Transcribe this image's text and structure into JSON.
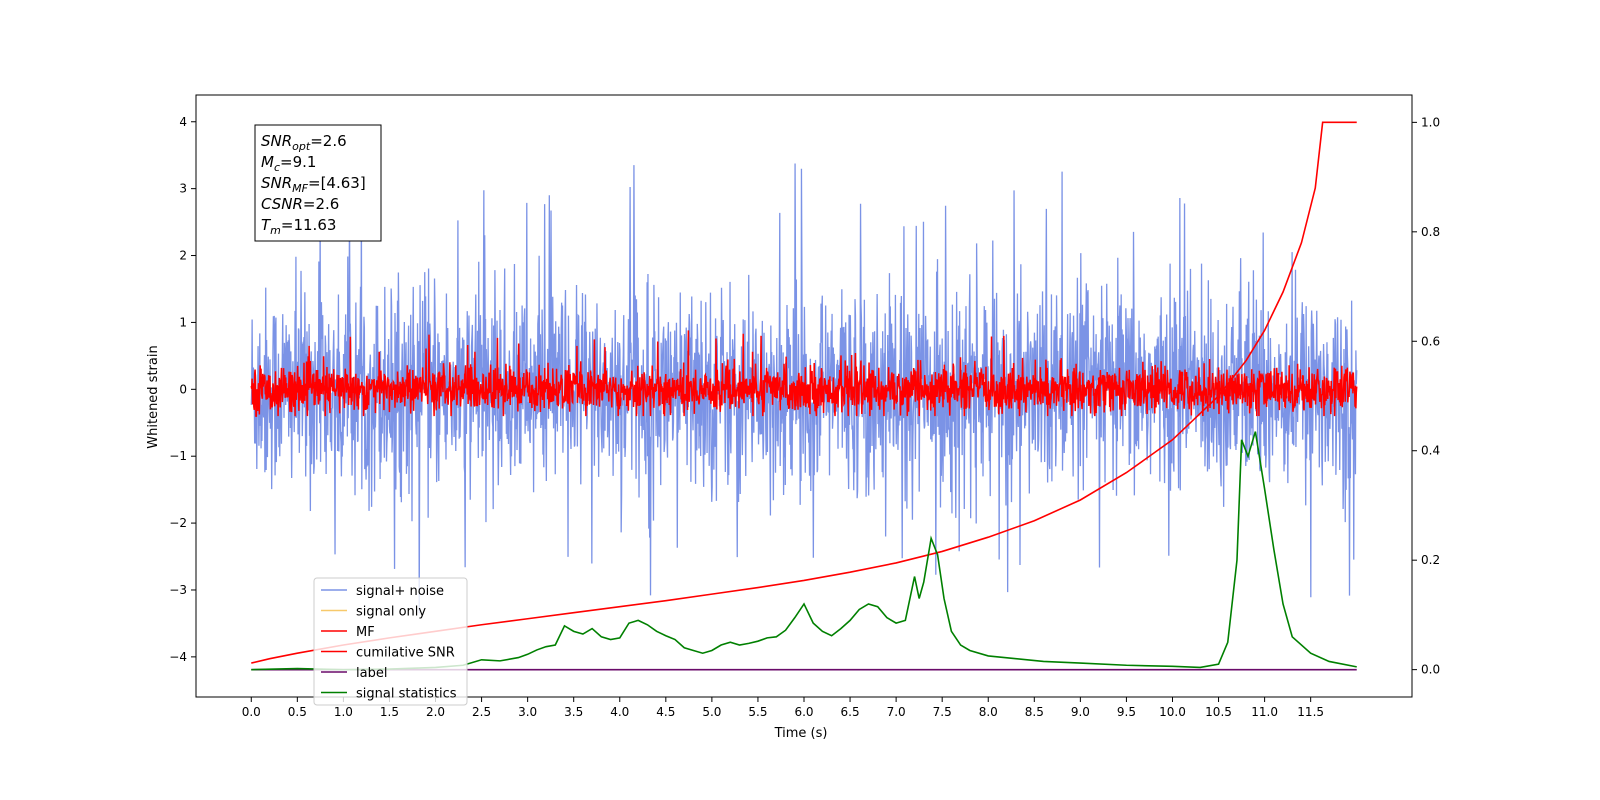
{
  "chart_data": {
    "type": "line",
    "xlabel": "Time (s)",
    "ylabel": "Whitened strain",
    "xlim": [
      -0.6,
      12.6
    ],
    "ylim": [
      -4.6,
      4.4
    ],
    "y2lim": [
      -0.05,
      1.05
    ],
    "x_ticks": [
      "0.0",
      "0.5",
      "1.0",
      "1.5",
      "2.0",
      "2.5",
      "3.0",
      "3.5",
      "4.0",
      "4.5",
      "5.0",
      "5.5",
      "6.0",
      "6.5",
      "7.0",
      "7.5",
      "8.0",
      "8.5",
      "9.0",
      "9.5",
      "10.0",
      "10.5",
      "11.0",
      "11.5"
    ],
    "y_ticks": [
      "4",
      "3",
      "2",
      "1",
      "0",
      "−1",
      "−2",
      "−3",
      "−4"
    ],
    "y2_ticks": [
      "1.0",
      "0.8",
      "0.6",
      "0.4",
      "0.2",
      "0.0"
    ],
    "annotation": {
      "lines": [
        {
          "main": "SNR",
          "sub": "opt",
          "rest": "=2.6"
        },
        {
          "main": "M",
          "sub": "c",
          "rest": "=9.1"
        },
        {
          "main": "SNR",
          "sub": "MF",
          "rest": "=[4.63]"
        },
        {
          "main": "CSNR",
          "sub": "",
          "rest": "=2.6"
        },
        {
          "main": "T",
          "sub": "m",
          "rest": "=11.63"
        }
      ]
    },
    "legend": {
      "position": "lower-left",
      "entries": [
        {
          "label": "signal+ noise",
          "color": "#7b93e6"
        },
        {
          "label": "signal only",
          "color": "#f7c96b"
        },
        {
          "label": "MF",
          "color": "#ff0000"
        },
        {
          "label": "cumilative SNR",
          "color": "#ff0000"
        },
        {
          "label": "label",
          "color": "#6a0a6a"
        },
        {
          "label": "signal statistics",
          "color": "#008000"
        }
      ]
    },
    "series": [
      {
        "name": "signal+ noise",
        "axis": "left",
        "color": "#7b93e6",
        "style": "noise",
        "x_range": [
          0,
          12.0
        ],
        "std": 0.75,
        "typical_min": -2.6,
        "typical_max": 2.6,
        "extreme_max": 3.9,
        "extreme_min": -3.7
      },
      {
        "name": "MF",
        "axis": "left",
        "color": "#ff0000",
        "style": "noise",
        "x_range": [
          0,
          12.0
        ],
        "std": 0.17,
        "typical_min": -0.35,
        "typical_max": 0.7,
        "extreme_max": 1.0,
        "extreme_min": -0.4
      },
      {
        "name": "cumilative SNR",
        "axis": "right",
        "color": "#ff0000",
        "x": [
          0.0,
          0.2,
          0.5,
          1.0,
          1.5,
          2.0,
          2.5,
          3.0,
          3.5,
          4.0,
          4.5,
          5.0,
          5.5,
          6.0,
          6.5,
          7.0,
          7.5,
          8.0,
          8.5,
          9.0,
          9.5,
          10.0,
          10.5,
          10.8,
          11.0,
          11.2,
          11.4,
          11.55,
          11.63,
          12.0
        ],
        "y": [
          0.012,
          0.02,
          0.03,
          0.045,
          0.058,
          0.07,
          0.082,
          0.093,
          0.104,
          0.115,
          0.126,
          0.138,
          0.15,
          0.163,
          0.178,
          0.195,
          0.216,
          0.242,
          0.272,
          0.31,
          0.36,
          0.42,
          0.5,
          0.565,
          0.62,
          0.69,
          0.78,
          0.88,
          1.0,
          1.0
        ]
      },
      {
        "name": "label",
        "axis": "right",
        "color": "#6a0a6a",
        "x": [
          0.0,
          12.0
        ],
        "y": [
          0.0,
          0.0
        ]
      },
      {
        "name": "signal statistics",
        "axis": "right",
        "color": "#008000",
        "x": [
          0.0,
          0.5,
          1.0,
          1.5,
          2.0,
          2.3,
          2.5,
          2.7,
          2.9,
          3.0,
          3.1,
          3.2,
          3.3,
          3.4,
          3.5,
          3.6,
          3.7,
          3.8,
          3.9,
          4.0,
          4.1,
          4.2,
          4.3,
          4.4,
          4.5,
          4.6,
          4.7,
          4.8,
          4.9,
          5.0,
          5.1,
          5.2,
          5.3,
          5.4,
          5.5,
          5.6,
          5.7,
          5.8,
          5.9,
          6.0,
          6.1,
          6.2,
          6.3,
          6.4,
          6.5,
          6.6,
          6.7,
          6.8,
          6.9,
          7.0,
          7.1,
          7.2,
          7.25,
          7.3,
          7.38,
          7.45,
          7.52,
          7.6,
          7.7,
          7.8,
          8.0,
          8.3,
          8.6,
          9.0,
          9.5,
          10.0,
          10.3,
          10.5,
          10.6,
          10.7,
          10.75,
          10.82,
          10.9,
          11.0,
          11.1,
          11.2,
          11.3,
          11.5,
          11.7,
          12.0
        ],
        "y": [
          0.0,
          0.002,
          0.0,
          0.001,
          0.004,
          0.008,
          0.018,
          0.016,
          0.022,
          0.028,
          0.036,
          0.042,
          0.045,
          0.08,
          0.07,
          0.065,
          0.075,
          0.06,
          0.055,
          0.058,
          0.085,
          0.09,
          0.082,
          0.07,
          0.062,
          0.055,
          0.04,
          0.035,
          0.03,
          0.035,
          0.045,
          0.05,
          0.045,
          0.048,
          0.052,
          0.058,
          0.06,
          0.072,
          0.095,
          0.12,
          0.085,
          0.07,
          0.062,
          0.075,
          0.09,
          0.11,
          0.12,
          0.115,
          0.095,
          0.085,
          0.09,
          0.17,
          0.13,
          0.16,
          0.24,
          0.21,
          0.13,
          0.07,
          0.045,
          0.035,
          0.025,
          0.02,
          0.015,
          0.012,
          0.008,
          0.006,
          0.004,
          0.01,
          0.05,
          0.2,
          0.42,
          0.39,
          0.435,
          0.33,
          0.22,
          0.12,
          0.06,
          0.03,
          0.015,
          0.005
        ]
      }
    ]
  }
}
